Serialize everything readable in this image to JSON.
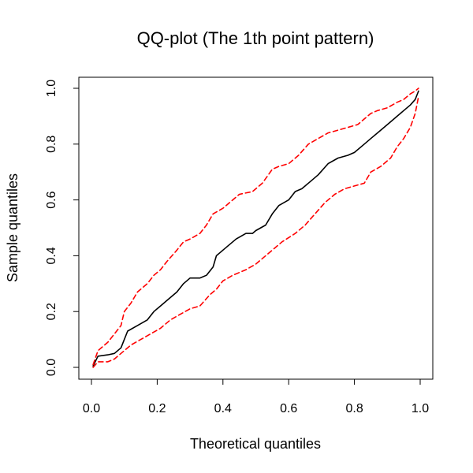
{
  "chart_data": {
    "type": "line",
    "title": "QQ-plot (The 1th point pattern)",
    "xlabel": "Theoretical quantiles",
    "ylabel": "Sample quantiles",
    "xlim": [
      0,
      1
    ],
    "ylim": [
      0,
      1
    ],
    "x_ticks": [
      "0.0",
      "0.2",
      "0.4",
      "0.6",
      "0.8",
      "1.0"
    ],
    "y_ticks": [
      "0.0",
      "0.2",
      "0.4",
      "0.6",
      "0.8",
      "1.0"
    ],
    "grid": false,
    "legend": "none",
    "series": [
      {
        "id": "observed",
        "color": "#000000",
        "dash": "solid",
        "x": [
          0.005,
          0.02,
          0.05,
          0.07,
          0.09,
          0.1,
          0.11,
          0.14,
          0.17,
          0.19,
          0.21,
          0.23,
          0.26,
          0.28,
          0.3,
          0.33,
          0.35,
          0.37,
          0.38,
          0.4,
          0.44,
          0.47,
          0.49,
          0.5,
          0.53,
          0.55,
          0.57,
          0.6,
          0.62,
          0.64,
          0.67,
          0.69,
          0.72,
          0.75,
          0.78,
          0.8,
          0.83,
          0.85,
          0.88,
          0.91,
          0.93,
          0.95,
          0.97,
          0.985,
          0.995
        ],
        "y": [
          0.005,
          0.04,
          0.045,
          0.05,
          0.07,
          0.1,
          0.13,
          0.15,
          0.17,
          0.2,
          0.22,
          0.24,
          0.27,
          0.3,
          0.32,
          0.32,
          0.33,
          0.36,
          0.4,
          0.42,
          0.46,
          0.48,
          0.48,
          0.49,
          0.51,
          0.55,
          0.58,
          0.6,
          0.63,
          0.64,
          0.67,
          0.69,
          0.73,
          0.75,
          0.76,
          0.77,
          0.8,
          0.82,
          0.85,
          0.88,
          0.9,
          0.92,
          0.94,
          0.96,
          0.99
        ]
      },
      {
        "id": "upper-envelope",
        "color": "#ff0000",
        "dash": "dashed",
        "x": [
          0.005,
          0.02,
          0.05,
          0.07,
          0.09,
          0.1,
          0.12,
          0.14,
          0.17,
          0.19,
          0.21,
          0.23,
          0.26,
          0.28,
          0.3,
          0.33,
          0.35,
          0.37,
          0.4,
          0.42,
          0.45,
          0.49,
          0.52,
          0.55,
          0.57,
          0.6,
          0.63,
          0.66,
          0.69,
          0.72,
          0.75,
          0.78,
          0.81,
          0.83,
          0.85,
          0.87,
          0.9,
          0.93,
          0.95,
          0.97,
          0.985,
          0.995
        ],
        "y": [
          0.01,
          0.06,
          0.09,
          0.12,
          0.15,
          0.2,
          0.23,
          0.27,
          0.3,
          0.33,
          0.35,
          0.38,
          0.42,
          0.45,
          0.46,
          0.48,
          0.51,
          0.55,
          0.57,
          0.59,
          0.62,
          0.63,
          0.66,
          0.71,
          0.72,
          0.73,
          0.76,
          0.8,
          0.82,
          0.84,
          0.85,
          0.86,
          0.87,
          0.89,
          0.91,
          0.92,
          0.93,
          0.95,
          0.96,
          0.98,
          0.99,
          1.0
        ]
      },
      {
        "id": "lower-envelope",
        "color": "#ff0000",
        "dash": "dashed",
        "x": [
          0.005,
          0.02,
          0.05,
          0.07,
          0.09,
          0.12,
          0.15,
          0.18,
          0.21,
          0.24,
          0.27,
          0.3,
          0.33,
          0.36,
          0.38,
          0.4,
          0.43,
          0.47,
          0.5,
          0.53,
          0.55,
          0.58,
          0.62,
          0.65,
          0.68,
          0.71,
          0.74,
          0.77,
          0.8,
          0.83,
          0.85,
          0.88,
          0.91,
          0.93,
          0.95,
          0.97,
          0.985,
          0.995
        ],
        "y": [
          0.0,
          0.02,
          0.02,
          0.03,
          0.05,
          0.08,
          0.1,
          0.12,
          0.14,
          0.17,
          0.19,
          0.21,
          0.22,
          0.26,
          0.28,
          0.31,
          0.33,
          0.35,
          0.37,
          0.4,
          0.42,
          0.45,
          0.48,
          0.51,
          0.55,
          0.59,
          0.62,
          0.64,
          0.65,
          0.66,
          0.7,
          0.72,
          0.75,
          0.79,
          0.82,
          0.86,
          0.91,
          0.97
        ]
      }
    ]
  }
}
